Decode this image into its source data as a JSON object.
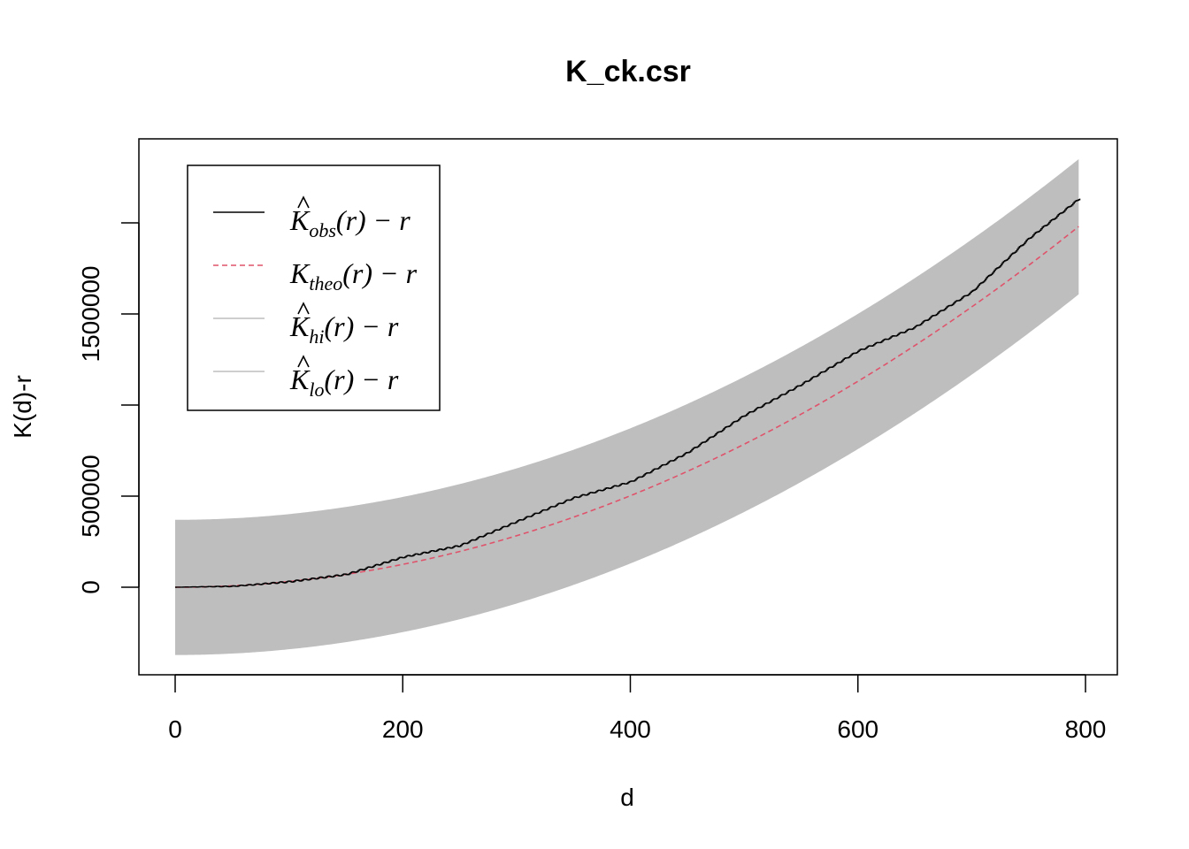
{
  "chart_data": {
    "type": "line",
    "title": "K_ck.csr",
    "xlabel": "d",
    "ylabel": "K(d)-r",
    "xlim": [
      0,
      800
    ],
    "ylim": [
      -480000,
      2460000
    ],
    "x_ticks": [
      0,
      200,
      400,
      600,
      800
    ],
    "x_tick_labels": [
      "0",
      "200",
      "400",
      "600",
      "800"
    ],
    "y_ticks": [
      0,
      500000,
      1000000,
      1500000,
      2000000
    ],
    "y_tick_labels": [
      "0",
      "500000",
      "",
      "1500000",
      ""
    ],
    "grid": false,
    "legend_position": "top-left",
    "r_max": 795,
    "series": [
      {
        "name": "obs",
        "label_base": "K",
        "label_sub": "obs",
        "label_rest": "(r) − r",
        "hat": true,
        "color": "#000000",
        "style": "solid",
        "x": [
          0,
          50,
          100,
          150,
          200,
          250,
          300,
          350,
          400,
          450,
          500,
          550,
          600,
          650,
          700,
          750,
          795
        ],
        "y": [
          0,
          5000,
          30000,
          70000,
          165000,
          228000,
          360000,
          490000,
          578000,
          738000,
          942000,
          1112000,
          1296000,
          1427000,
          1621000,
          1913000,
          2136000
        ]
      },
      {
        "name": "theo",
        "label_base": "K",
        "label_sub": "theo",
        "label_rest": "(r) − r",
        "hat": false,
        "color": "#DF536B",
        "style": "dashed",
        "formula": "pi*r^2 - r"
      },
      {
        "name": "hi",
        "label_base": "K",
        "label_sub": "hi",
        "label_rest": "(r) − r",
        "hat": true,
        "color": "#BEBEBE",
        "style": "solid",
        "offset_from_theo": 370000
      },
      {
        "name": "lo",
        "label_base": "K",
        "label_sub": "lo",
        "label_rest": "(r) − r",
        "hat": true,
        "color": "#BEBEBE",
        "style": "solid",
        "offset_from_theo": -372000
      }
    ],
    "envelope_fill": "#BEBEBE"
  }
}
